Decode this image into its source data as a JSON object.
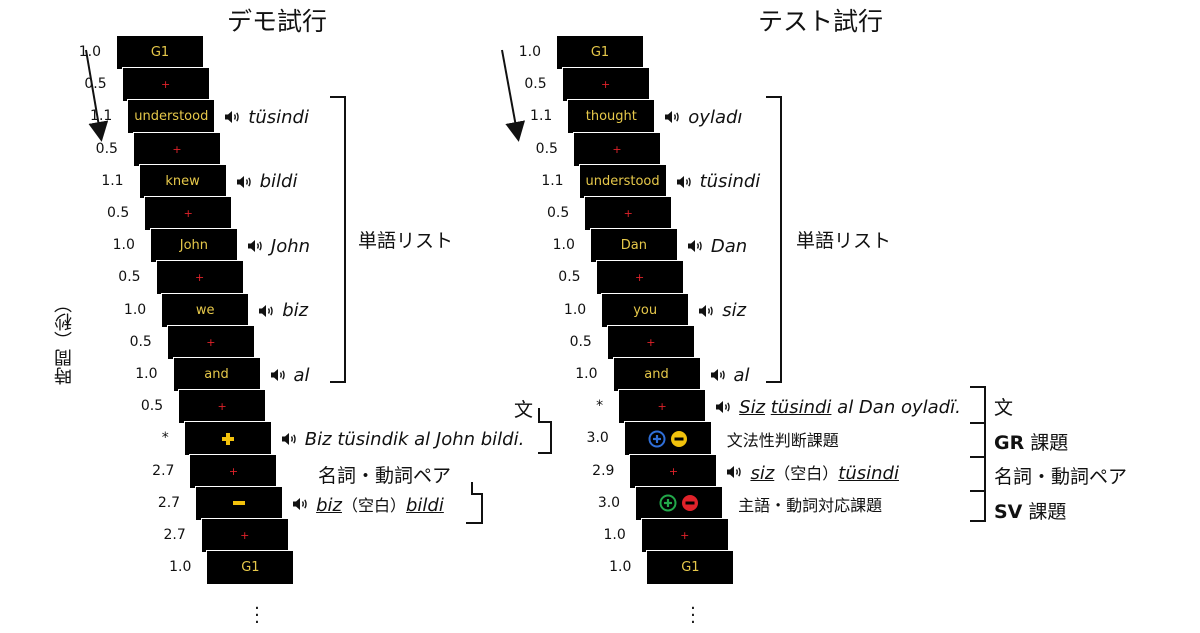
{
  "colors": {
    "word_text": "#e6c84a",
    "fixation": "#e0222a",
    "yellow_sign": "#f2c20c",
    "blue_option": "#2f6fd8",
    "green_option": "#22a84a",
    "red_option": "#e0222a"
  },
  "y_axis_label": "時間（秒）",
  "left": {
    "title": "デモ試行",
    "times": [
      "1.0",
      "0.5",
      "1.1",
      "0.5",
      "1.1",
      "0.5",
      "1.0",
      "0.5",
      "1.0",
      "0.5",
      "1.0",
      "0.5",
      "*",
      "2.7",
      "2.7",
      "2.7",
      "1.0"
    ],
    "screens": [
      {
        "type": "text",
        "text": "G1"
      },
      {
        "type": "fixation",
        "text": "+"
      },
      {
        "type": "text",
        "text": "understood"
      },
      {
        "type": "fixation",
        "text": "+"
      },
      {
        "type": "text",
        "text": "knew"
      },
      {
        "type": "fixation",
        "text": "+"
      },
      {
        "type": "text",
        "text": "John"
      },
      {
        "type": "fixation",
        "text": "+"
      },
      {
        "type": "text",
        "text": "we"
      },
      {
        "type": "fixation",
        "text": "+"
      },
      {
        "type": "text",
        "text": "and"
      },
      {
        "type": "fixation",
        "text": "+"
      },
      {
        "type": "plus",
        "icon": "yellow-plus-icon"
      },
      {
        "type": "fixation",
        "text": "+"
      },
      {
        "type": "minus",
        "icon": "yellow-minus-icon"
      },
      {
        "type": "fixation",
        "text": "+"
      },
      {
        "type": "text",
        "text": "G1"
      }
    ],
    "audio": {
      "2": "tüsindi",
      "4": "bildi",
      "6": "John",
      "8": "biz",
      "10": "al",
      "12": "Biz tüsindik al John bildi.",
      "14": {
        "w1": "biz",
        "mid": "（空白）",
        "w2": "bildi"
      }
    },
    "brackets": {
      "word_list": "単語リスト",
      "sentence": "文",
      "noun_verb_pair": "名詞・動詞ペア"
    },
    "speaker_icon": "speaker-icon"
  },
  "right": {
    "title": "テスト試行",
    "times": [
      "1.0",
      "0.5",
      "1.1",
      "0.5",
      "1.1",
      "0.5",
      "1.0",
      "0.5",
      "1.0",
      "0.5",
      "1.0",
      "*",
      "3.0",
      "2.9",
      "3.0",
      "1.0",
      "1.0"
    ],
    "screens": [
      {
        "type": "text",
        "text": "G1"
      },
      {
        "type": "fixation",
        "text": "+"
      },
      {
        "type": "text",
        "text": "thought"
      },
      {
        "type": "fixation",
        "text": "+"
      },
      {
        "type": "text",
        "text": "understood"
      },
      {
        "type": "fixation",
        "text": "+"
      },
      {
        "type": "text",
        "text": "Dan"
      },
      {
        "type": "fixation",
        "text": "+"
      },
      {
        "type": "text",
        "text": "you"
      },
      {
        "type": "fixation",
        "text": "+"
      },
      {
        "type": "text",
        "text": "and"
      },
      {
        "type": "fixation",
        "text": "+"
      },
      {
        "type": "options",
        "icons": [
          "blue-plus-circle-icon",
          "yellow-minus-circle-icon"
        ]
      },
      {
        "type": "fixation",
        "text": "+"
      },
      {
        "type": "options",
        "icons": [
          "green-plus-circle-icon",
          "red-minus-circle-icon"
        ]
      },
      {
        "type": "fixation",
        "text": "+"
      },
      {
        "type": "text",
        "text": "G1"
      }
    ],
    "audio": {
      "2": "oyladı",
      "4": "tüsindi",
      "6": "Dan",
      "8": "siz",
      "10": "al",
      "11": {
        "w1": "Siz",
        "w2": "tüsindi",
        "rest": "al Dan oyladï."
      },
      "12": {
        "task": "文法性判断課題"
      },
      "13": {
        "w1": "siz",
        "mid": "（空白）",
        "w2": "tüsindi"
      },
      "14": {
        "task": "主語・動詞対応課題"
      }
    },
    "brackets": {
      "word_list": "単語リスト",
      "sentence": "文",
      "gr_bold": "GR",
      "gr_rest": " 課題",
      "noun_verb_pair": "名詞・動詞ペア",
      "sv_bold": "SV",
      "sv_rest": " 課題"
    }
  }
}
